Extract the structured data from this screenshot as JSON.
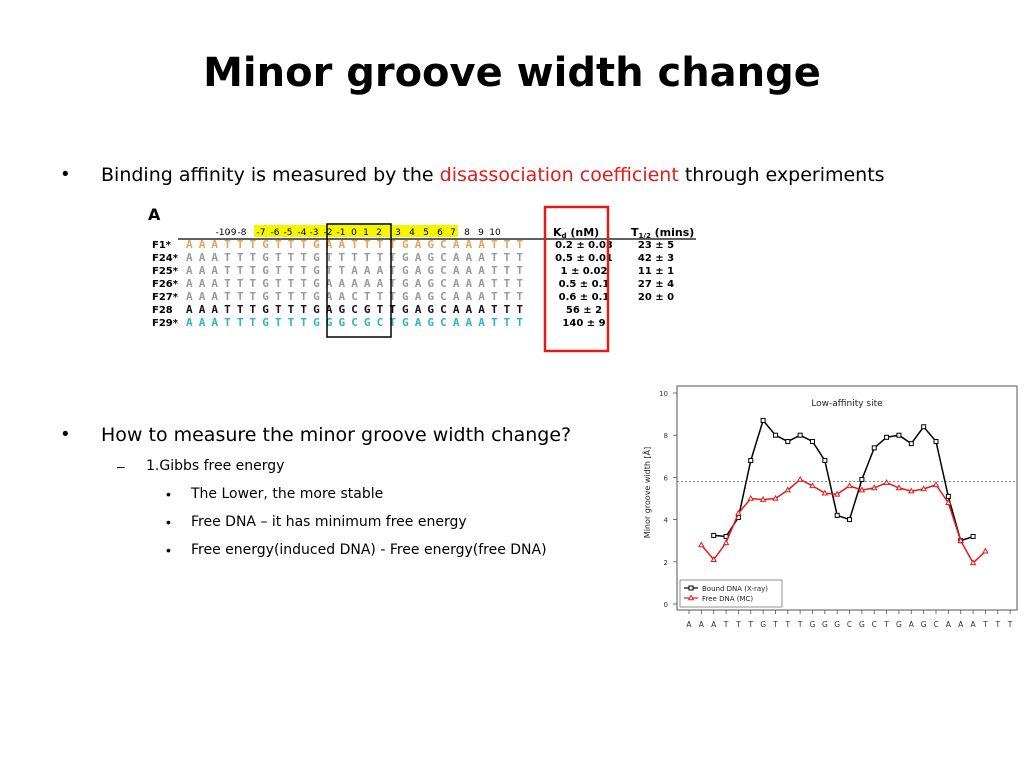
{
  "slide": {
    "title": "Minor groove width change",
    "bullet1": {
      "prefix": "Binding affinity is measured by the ",
      "highlight": "disassociation coefficient",
      "suffix": " through experiments"
    },
    "bullet2": "How to measure the minor groove width change?",
    "sub1": "1.Gibbs free energy",
    "subsub": [
      "The Lower, the more stable",
      "Free DNA – it has minimum free energy",
      "Free energy(induced DNA) - Free energy(free DNA)"
    ],
    "bullet_glyph": "•",
    "dash_glyph": "–"
  },
  "panel_a": {
    "label": "A",
    "positions": [
      "-10",
      "-9",
      "-8",
      "-7",
      "-6",
      "-5",
      "-4",
      "-3",
      "-2",
      "-1",
      "0",
      "1",
      "2",
      "3",
      "4",
      "5",
      "6",
      "7",
      "8",
      "9",
      "10"
    ],
    "kd_header": "K",
    "kd_sub": "d",
    "kd_unit": " (nM)",
    "t_header": "T",
    "t_sub": "1/2",
    "t_unit": " (mins)",
    "rows": [
      {
        "name": "F1*",
        "seq": "AAATTTGTTTGAATTTTGAGCAAATTT",
        "kd": "0.2 ± 0.03",
        "t": "23 ± 5",
        "color": "#e8a15a"
      },
      {
        "name": "F24*",
        "seq": "AAATTTGTTTGTTTTTTGAGCAAATTT",
        "kd": "0.5 ± 0.01",
        "t": "42 ± 3",
        "color": "#9a9a9a"
      },
      {
        "name": "F25*",
        "seq": "AAATTTGTTTGTTAAATGAGCAAATTT",
        "kd": "1 ± 0.02",
        "t": "11 ± 1",
        "color": "#9a9a9a"
      },
      {
        "name": "F26*",
        "seq": "AAATTTGTTTGAAAAATGAGCAAATTT",
        "kd": "0.5 ± 0.1",
        "t": "27 ± 4",
        "color": "#9a9a9a"
      },
      {
        "name": "F27*",
        "seq": "AAATTTGTTTGAACTTTGAGCAAATTT",
        "kd": "0.6 ± 0.1",
        "t": "20 ± 0",
        "color": "#9a9a9a"
      },
      {
        "name": "F28",
        "seq": "AAATTTGTTTGAGCGTTGAGCAAATTT",
        "kd": "56 ± 2",
        "t": "",
        "color": "#111111"
      },
      {
        "name": "F29*",
        "seq": "AAATTTGTTTGGGCGCTGAGCAAATTT",
        "kd": "140 ± 9",
        "t": "",
        "color": "#2bb5c4"
      }
    ],
    "colors": {
      "highlight": "#f5f500",
      "kd_box": "#e31b1b"
    }
  },
  "chart_data": {
    "type": "line",
    "title": "Low-affinity site",
    "xlabel": "",
    "ylabel": "Minor groove width [Å]",
    "categories": [
      "A",
      "A",
      "A",
      "T",
      "T",
      "T",
      "G",
      "T",
      "T",
      "T",
      "G",
      "G",
      "G",
      "C",
      "G",
      "C",
      "T",
      "G",
      "A",
      "G",
      "C",
      "A",
      "A",
      "A",
      "T",
      "T",
      "T"
    ],
    "ylim": [
      0,
      10
    ],
    "yticks": [
      0,
      2,
      4,
      6,
      8,
      10
    ],
    "reference_line": 5.8,
    "series": [
      {
        "name": "Bound DNA (X-ray)",
        "color": "#000000",
        "marker": "square",
        "values": [
          null,
          null,
          3.25,
          3.2,
          4.1,
          6.8,
          8.7,
          8.0,
          7.7,
          8.0,
          7.7,
          6.8,
          4.2,
          4.0,
          5.9,
          7.4,
          7.9,
          8.0,
          7.6,
          8.4,
          7.7,
          5.1,
          3.0,
          3.2,
          null,
          null,
          null
        ]
      },
      {
        "name": "Free DNA (MC)",
        "color": "#e31b1b",
        "marker": "triangle",
        "values": [
          null,
          2.8,
          2.1,
          2.9,
          4.3,
          5.0,
          4.95,
          5.0,
          5.4,
          5.9,
          5.6,
          5.25,
          5.2,
          5.6,
          5.4,
          5.5,
          5.75,
          5.5,
          5.35,
          5.45,
          5.65,
          4.8,
          3.0,
          1.95,
          2.5,
          null,
          null
        ]
      }
    ],
    "legend": "bottom-left",
    "grid": false
  }
}
